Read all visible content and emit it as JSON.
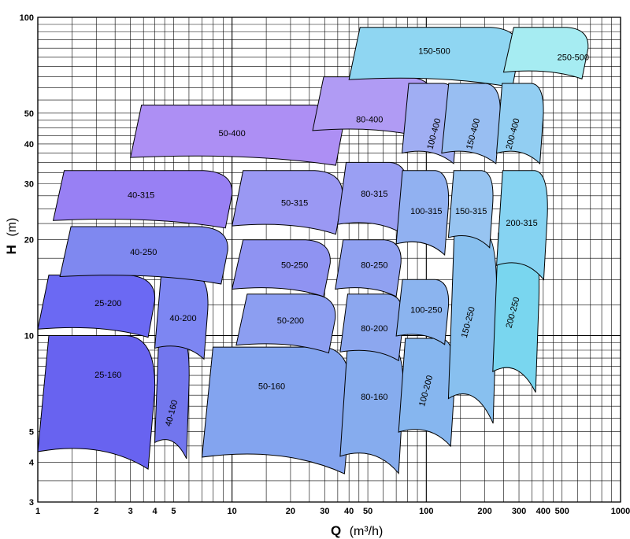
{
  "chart_data": {
    "type": "area",
    "xlabel": {
      "symbol": "Q",
      "unit": "(m³/h)"
    },
    "ylabel": {
      "symbol": "H",
      "unit": "(m)"
    },
    "x_scale": "log",
    "y_scale": "log",
    "xlim": [
      1,
      1000
    ],
    "ylim": [
      3,
      100
    ],
    "grid": true,
    "x_ticks": [
      1,
      2,
      3,
      4,
      5,
      10,
      20,
      30,
      40,
      50,
      100,
      200,
      300,
      400,
      500,
      1000
    ],
    "y_ticks": [
      3,
      4,
      5,
      10,
      20,
      30,
      40,
      50,
      100
    ],
    "regions": [
      {
        "name": "25-160",
        "q_range": [
          1,
          4
        ],
        "h_range": [
          3.5,
          10
        ],
        "label_at": [
          2.3,
          7.5
        ],
        "rotation": 0,
        "color": "#6863f0"
      },
      {
        "name": "40-160",
        "q_range": [
          4,
          6
        ],
        "h_range": [
          3.8,
          10
        ],
        "label_at": [
          4.9,
          5.7
        ],
        "rotation": -75,
        "color": "#7276ee"
      },
      {
        "name": "25-200",
        "q_range": [
          1,
          4
        ],
        "h_range": [
          9.5,
          15.5
        ],
        "label_at": [
          2.3,
          12.6
        ],
        "rotation": 0,
        "color": "#6b69f3"
      },
      {
        "name": "40-200",
        "q_range": [
          4,
          7.5
        ],
        "h_range": [
          8,
          15.5
        ],
        "label_at": [
          5.6,
          11.3
        ],
        "rotation": 0,
        "color": "#7d86f2"
      },
      {
        "name": "40-250",
        "q_range": [
          1.3,
          9.5
        ],
        "h_range": [
          14,
          22
        ],
        "label_at": [
          3.5,
          18.2
        ],
        "rotation": 0,
        "color": "#7f88f0"
      },
      {
        "name": "40-315",
        "q_range": [
          1.2,
          10
        ],
        "h_range": [
          21,
          33
        ],
        "label_at": [
          3.4,
          27.5
        ],
        "rotation": 0,
        "color": "#9880f4"
      },
      {
        "name": "50-400",
        "q_range": [
          3,
          37
        ],
        "h_range": [
          33,
          53
        ],
        "label_at": [
          10,
          43
        ],
        "rotation": 0,
        "color": "#ad8ff4"
      },
      {
        "name": "80-400",
        "q_range": [
          26,
          110
        ],
        "h_range": [
          40,
          65
        ],
        "label_at": [
          51,
          47.5
        ],
        "rotation": 0,
        "color": "#b09bf4"
      },
      {
        "name": "50-160",
        "q_range": [
          7,
          41
        ],
        "h_range": [
          3.4,
          9.2
        ],
        "label_at": [
          16,
          6.9
        ],
        "rotation": 0,
        "color": "#83a4ef"
      },
      {
        "name": "50-200",
        "q_range": [
          10.5,
          34
        ],
        "h_range": [
          8.5,
          13.5
        ],
        "label_at": [
          20,
          11.1
        ],
        "rotation": 0,
        "color": "#8c9ef1"
      },
      {
        "name": "50-250",
        "q_range": [
          10,
          32
        ],
        "h_range": [
          12.8,
          20
        ],
        "label_at": [
          21,
          16.6
        ],
        "rotation": 0,
        "color": "#8f93f2"
      },
      {
        "name": "50-315",
        "q_range": [
          10,
          37
        ],
        "h_range": [
          20,
          33
        ],
        "label_at": [
          21,
          26
        ],
        "rotation": 0,
        "color": "#9a98f3"
      },
      {
        "name": "80-160",
        "q_range": [
          36,
          76
        ],
        "h_range": [
          3.4,
          9.5
        ],
        "label_at": [
          54,
          6.4
        ],
        "rotation": 0,
        "color": "#86acee"
      },
      {
        "name": "80-200",
        "q_range": [
          36,
          76
        ],
        "h_range": [
          8,
          13.5
        ],
        "label_at": [
          54,
          10.5
        ],
        "rotation": 0,
        "color": "#8ca7ef"
      },
      {
        "name": "80-250",
        "q_range": [
          34,
          74
        ],
        "h_range": [
          12.8,
          20
        ],
        "label_at": [
          54,
          16.6
        ],
        "rotation": 0,
        "color": "#90a1f1"
      },
      {
        "name": "80-315",
        "q_range": [
          35,
          80
        ],
        "h_range": [
          20,
          35
        ],
        "label_at": [
          54,
          27.8
        ],
        "rotation": 0,
        "color": "#9a9ff3"
      },
      {
        "name": "100-200",
        "q_range": [
          72,
          140
        ],
        "h_range": [
          4.2,
          9.8
        ],
        "label_at": [
          100,
          6.7
        ],
        "rotation": -75,
        "color": "#86b6ef"
      },
      {
        "name": "100-250",
        "q_range": [
          70,
          130
        ],
        "h_range": [
          9,
          15
        ],
        "label_at": [
          100,
          12
        ],
        "rotation": 0,
        "color": "#8bb4ef"
      },
      {
        "name": "100-315",
        "q_range": [
          70,
          130
        ],
        "h_range": [
          17,
          33
        ],
        "label_at": [
          100,
          24.5
        ],
        "rotation": 0,
        "color": "#91b1f1"
      },
      {
        "name": "100-400",
        "q_range": [
          75,
          145
        ],
        "h_range": [
          33,
          62
        ],
        "label_at": [
          110,
          43
        ],
        "rotation": -75,
        "color": "#a0aef3"
      },
      {
        "name": "150-250",
        "q_range": [
          130,
          230
        ],
        "h_range": [
          4.7,
          21
        ],
        "label_at": [
          165,
          11
        ],
        "rotation": -75,
        "color": "#88c0ef"
      },
      {
        "name": "150-315",
        "q_range": [
          130,
          220
        ],
        "h_range": [
          18,
          33
        ],
        "label_at": [
          170,
          24.5
        ],
        "rotation": 0,
        "color": "#97c4f1"
      },
      {
        "name": "150-400",
        "q_range": [
          120,
          240
        ],
        "h_range": [
          33,
          62
        ],
        "label_at": [
          175,
          43
        ],
        "rotation": -75,
        "color": "#98bef2"
      },
      {
        "name": "150-500",
        "q_range": [
          40,
          300
        ],
        "h_range": [
          58,
          93
        ],
        "label_at": [
          110,
          78
        ],
        "rotation": 0,
        "color": "#8fd6f2"
      },
      {
        "name": "200-250",
        "q_range": [
          220,
          380
        ],
        "h_range": [
          6,
          21
        ],
        "label_at": [
          280,
          11.8
        ],
        "rotation": -75,
        "color": "#79d6ef"
      },
      {
        "name": "200-315",
        "q_range": [
          230,
          420
        ],
        "h_range": [
          14,
          33
        ],
        "label_at": [
          310,
          22.5
        ],
        "rotation": 0,
        "color": "#86d3f2"
      },
      {
        "name": "200-400",
        "q_range": [
          230,
          400
        ],
        "h_range": [
          33,
          62
        ],
        "label_at": [
          280,
          43
        ],
        "rotation": -75,
        "color": "#92cef2"
      },
      {
        "name": "250-500",
        "q_range": [
          250,
          680
        ],
        "h_range": [
          62,
          93
        ],
        "label_at": [
          570,
          74.5
        ],
        "rotation": 0,
        "color": "#a6ecf2"
      }
    ]
  }
}
